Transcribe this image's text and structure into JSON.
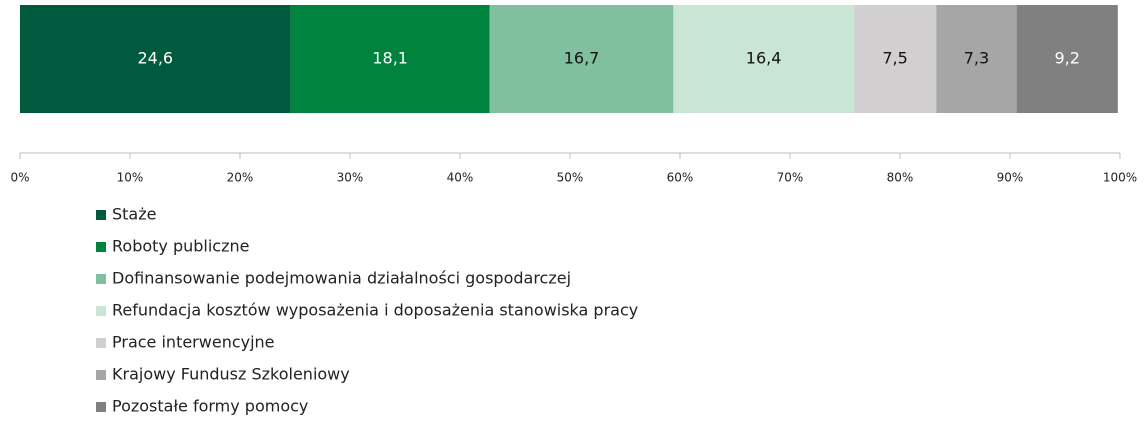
{
  "chart_data": {
    "type": "bar",
    "orientation": "horizontal",
    "stacked": true,
    "categories": [
      null
    ],
    "series": [
      {
        "name": "Staże",
        "color": "#005a3e",
        "values": [
          24.6
        ],
        "value_labels": [
          "24,6"
        ]
      },
      {
        "name": "Roboty publiczne",
        "color": "#00843d",
        "values": [
          18.1
        ],
        "value_labels": [
          "18,1"
        ]
      },
      {
        "name": "Dofinansowanie podejmowania działalności gospodarczej",
        "color": "#80c09f",
        "values": [
          16.7
        ],
        "value_labels": [
          "16,7"
        ]
      },
      {
        "name": "Refundacja kosztów wyposażenia i doposażenia stanowiska pracy",
        "color": "#c9e6d5",
        "values": [
          16.4
        ],
        "value_labels": [
          "16,4"
        ]
      },
      {
        "name": "Prace interwencyjne",
        "color": "#d1cfcf",
        "values": [
          7.5
        ],
        "value_labels": [
          "7,5"
        ]
      },
      {
        "name": "Krajowy Fundusz Szkoleniowy",
        "color": "#a6a6a6",
        "values": [
          7.3
        ],
        "value_labels": [
          "7,3"
        ]
      },
      {
        "name": "Pozostałe formy pomocy",
        "color": "#808080",
        "values": [
          9.2
        ],
        "value_labels": [
          "9,2"
        ]
      }
    ],
    "xlim": [
      0,
      100
    ],
    "xticks": [
      {
        "value": 0,
        "label": "0%"
      },
      {
        "value": 10,
        "label": "10%"
      },
      {
        "value": 20,
        "label": "20%"
      },
      {
        "value": 30,
        "label": "30%"
      },
      {
        "value": 40,
        "label": "40%"
      },
      {
        "value": 50,
        "label": "50%"
      },
      {
        "value": 60,
        "label": "60%"
      },
      {
        "value": 70,
        "label": "70%"
      },
      {
        "value": 80,
        "label": "80%"
      },
      {
        "value": 90,
        "label": "90%"
      },
      {
        "value": 100,
        "label": "100%"
      }
    ],
    "legend": "bottom"
  }
}
